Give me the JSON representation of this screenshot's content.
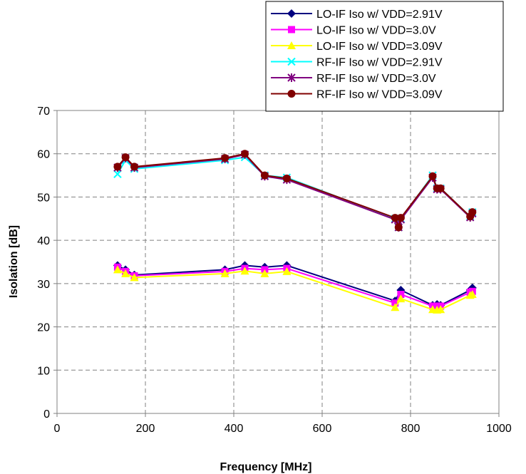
{
  "chart_data": {
    "type": "line",
    "xlabel": "Frequency [MHz]",
    "ylabel": "Isolation [dB]",
    "xlim": [
      0,
      1000
    ],
    "ylim": [
      0,
      70
    ],
    "x_ticks": [
      "0",
      "200",
      "400",
      "600",
      "800",
      "1000"
    ],
    "y_ticks": [
      "0",
      "10",
      "20",
      "30",
      "40",
      "50",
      "60",
      "70"
    ],
    "grid": "dashed",
    "legend_position": "top-right",
    "series": [
      {
        "name": "LO-IF Iso w/ VDD=2.91V",
        "color": "#000080",
        "marker": "diamond",
        "x": [
          137,
          155,
          175,
          380,
          425,
          470,
          520,
          765,
          778,
          850,
          860,
          868,
          935,
          940
        ],
        "y": [
          34.2,
          33.2,
          32.0,
          33.2,
          34.2,
          33.8,
          34.2,
          26.0,
          28.5,
          25.0,
          25.2,
          25.0,
          28.5,
          29.0
        ]
      },
      {
        "name": "LO-IF Iso w/ VDD=3.0V",
        "color": "#FF00FF",
        "marker": "square",
        "x": [
          137,
          155,
          175,
          380,
          425,
          470,
          520,
          765,
          778,
          850,
          860,
          868,
          935,
          940
        ],
        "y": [
          33.8,
          32.8,
          31.8,
          32.8,
          33.5,
          33.2,
          33.5,
          25.5,
          27.5,
          24.8,
          24.8,
          24.8,
          28.0,
          28.2
        ]
      },
      {
        "name": "LO-IF Iso w/ VDD=3.09V",
        "color": "#FFFF00",
        "marker": "triangle",
        "x": [
          137,
          155,
          175,
          380,
          425,
          470,
          520,
          765,
          778,
          850,
          860,
          868,
          935,
          940
        ],
        "y": [
          33.2,
          32.3,
          31.4,
          32.3,
          32.9,
          32.3,
          32.8,
          24.5,
          26.5,
          24.0,
          23.9,
          24.0,
          27.3,
          27.5
        ]
      },
      {
        "name": "RF-IF Iso w/ VDD=2.91V",
        "color": "#00FFFF",
        "marker": "x",
        "x": [
          137,
          155,
          175,
          380,
          425,
          470,
          520,
          765,
          773,
          778,
          850,
          860,
          868,
          935,
          940
        ],
        "y": [
          55.3,
          58.5,
          56.5,
          58.5,
          59.2,
          55.0,
          54.5,
          45.0,
          43.0,
          45.0,
          55.0,
          52.0,
          52.0,
          45.5,
          46.5
        ]
      },
      {
        "name": "RF-IF Iso w/ VDD=3.0V",
        "color": "#800080",
        "marker": "star",
        "x": [
          137,
          155,
          175,
          380,
          425,
          470,
          520,
          765,
          773,
          778,
          850,
          860,
          868,
          935,
          940
        ],
        "y": [
          56.8,
          59.0,
          56.8,
          58.8,
          59.8,
          54.8,
          54.0,
          44.8,
          43.0,
          44.8,
          54.5,
          51.8,
          51.8,
          45.3,
          46.2
        ]
      },
      {
        "name": "RF-IF Iso w/ VDD=3.09V",
        "color": "#800000",
        "marker": "circle",
        "x": [
          137,
          155,
          175,
          380,
          425,
          470,
          520,
          765,
          773,
          778,
          850,
          860,
          868,
          935,
          940
        ],
        "y": [
          57.0,
          59.2,
          57.0,
          59.0,
          60.0,
          55.0,
          54.3,
          45.2,
          43.0,
          45.2,
          54.8,
          52.0,
          52.0,
          45.5,
          46.5
        ]
      }
    ]
  }
}
